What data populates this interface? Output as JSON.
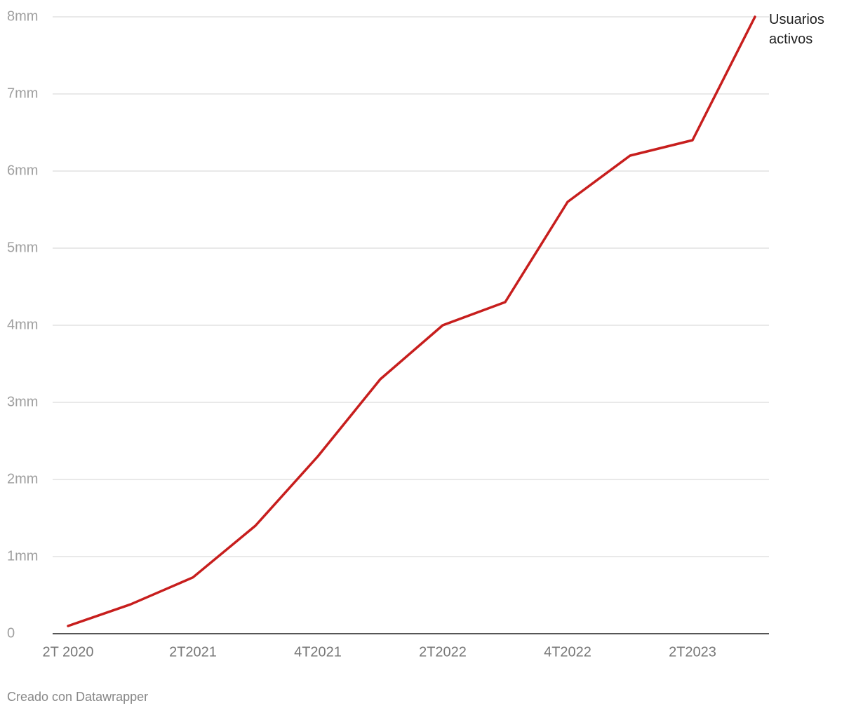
{
  "chart_data": {
    "type": "line",
    "categories": [
      "2T 2020",
      null,
      "2T2021",
      null,
      "4T2021",
      null,
      "2T2022",
      null,
      "4T2022",
      null,
      "2T2023",
      null
    ],
    "series": [
      {
        "name": "Usuarios activos",
        "color": "#c71e1d",
        "values": [
          0.1,
          0.38,
          0.73,
          1.4,
          2.3,
          3.3,
          4.0,
          4.3,
          5.6,
          6.2,
          6.4,
          8.0
        ]
      }
    ],
    "ylim": [
      0,
      8
    ],
    "yticks": [
      0,
      {
        "value": 1,
        "label": "1mm"
      },
      {
        "value": 2,
        "label": "2mm"
      },
      {
        "value": 3,
        "label": "3mm"
      },
      {
        "value": 4,
        "label": "4mm"
      },
      {
        "value": 5,
        "label": "5mm"
      },
      {
        "value": 6,
        "label": "6mm"
      },
      {
        "value": 7,
        "label": "7mm"
      },
      {
        "value": 8,
        "label": "8mm"
      }
    ],
    "grid": true,
    "source": "Creado con Datawrapper"
  }
}
